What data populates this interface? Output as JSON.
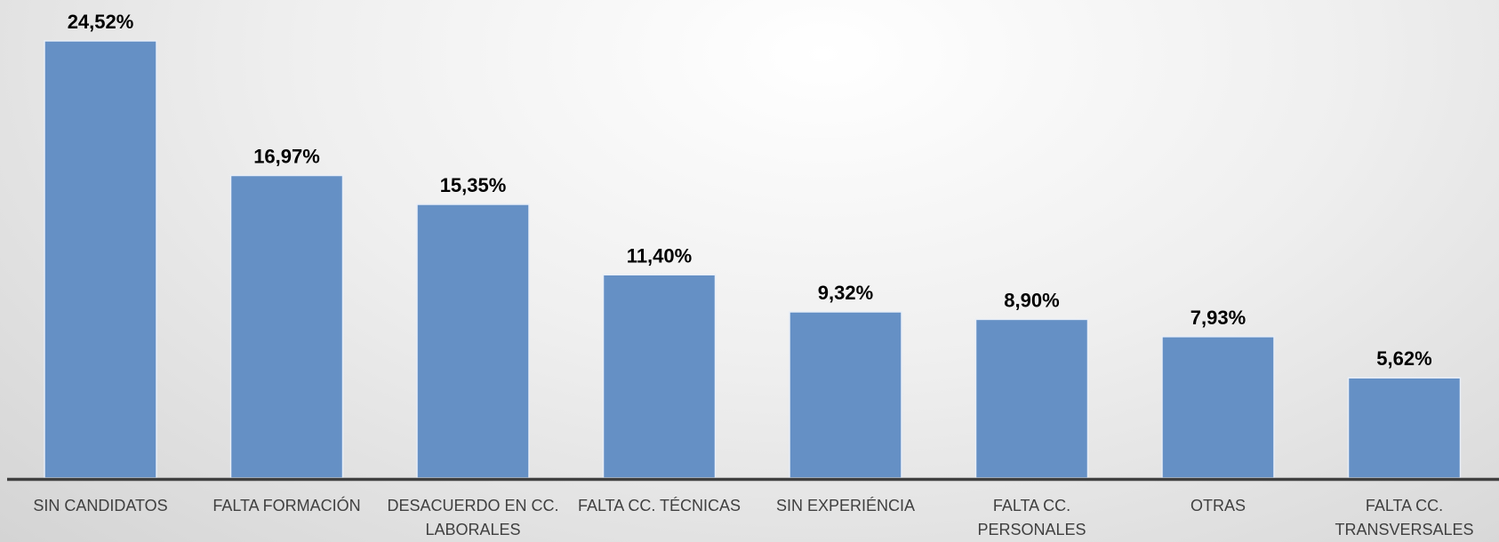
{
  "chart_data": {
    "type": "bar",
    "categories": [
      "SIN CANDIDATOS",
      "FALTA FORMACIÓN",
      "DESACUERDO EN CC. LABORALES",
      "FALTA CC. TÉCNICAS",
      "SIN EXPERIÉNCIA",
      "FALTA CC. PERSONALES",
      "OTRAS",
      "FALTA CC. TRANSVERSALES"
    ],
    "values": [
      24.52,
      16.97,
      15.35,
      11.4,
      9.32,
      8.9,
      7.93,
      5.62
    ],
    "value_labels": [
      "24,52%",
      "16,97%",
      "15,35%",
      "11,40%",
      "9,32%",
      "8,90%",
      "7,93%",
      "5,62%"
    ],
    "color": "#6590c5"
  }
}
